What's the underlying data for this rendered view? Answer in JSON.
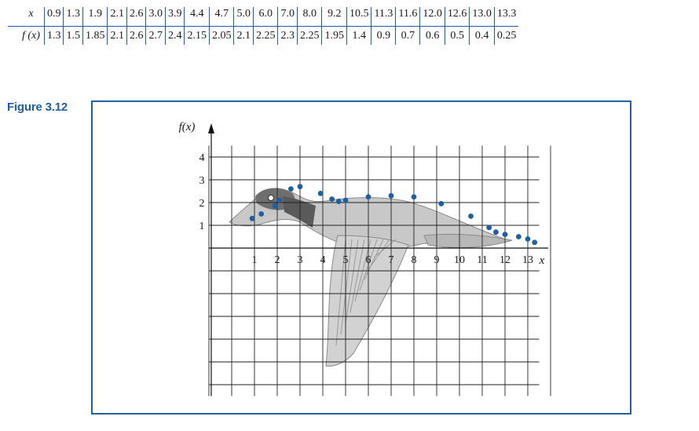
{
  "table": {
    "x_label": "x",
    "f_label": "f (x)",
    "x_values": [
      "0.9",
      "1.3",
      "1.9",
      "2.1",
      "2.6",
      "3.0",
      "3.9",
      "4.4",
      "4.7",
      "5.0",
      "6.0",
      "7.0",
      "8.0",
      "9.2",
      "10.5",
      "11.3",
      "11.6",
      "12.0",
      "12.6",
      "13.0",
      "13.3"
    ],
    "f_values": [
      "1.3",
      "1.5",
      "1.85",
      "2.1",
      "2.6",
      "2.7",
      "2.4",
      "2.15",
      "2.05",
      "2.1",
      "2.25",
      "2.3",
      "2.25",
      "1.95",
      "1.4",
      "0.9",
      "0.7",
      "0.6",
      "0.5",
      "0.4",
      "0.25"
    ]
  },
  "figure": {
    "label": "Figure 3.12"
  },
  "chart_data": {
    "type": "scatter",
    "title": "",
    "xlabel": "x",
    "ylabel": "f(x)",
    "xlim": [
      -1,
      14
    ],
    "ylim": [
      -6.5,
      4.5
    ],
    "x_ticks": [
      "1",
      "2",
      "3",
      "4",
      "5",
      "6",
      "7",
      "8",
      "9",
      "10",
      "11",
      "12",
      "13"
    ],
    "y_ticks": [
      "1",
      "2",
      "3",
      "4"
    ],
    "grid": true,
    "points_color": "#1f5fa0",
    "points": [
      [
        0.9,
        1.3
      ],
      [
        1.3,
        1.5
      ],
      [
        1.9,
        1.85
      ],
      [
        2.1,
        2.1
      ],
      [
        2.6,
        2.6
      ],
      [
        3.0,
        2.7
      ],
      [
        3.9,
        2.4
      ],
      [
        4.4,
        2.15
      ],
      [
        4.7,
        2.05
      ],
      [
        5.0,
        2.1
      ],
      [
        6.0,
        2.25
      ],
      [
        7.0,
        2.3
      ],
      [
        8.0,
        2.25
      ],
      [
        9.2,
        1.95
      ],
      [
        10.5,
        1.4
      ],
      [
        11.3,
        0.9
      ],
      [
        11.6,
        0.7
      ],
      [
        12.0,
        0.6
      ],
      [
        12.6,
        0.5
      ],
      [
        13.0,
        0.4
      ],
      [
        13.3,
        0.25
      ]
    ]
  }
}
